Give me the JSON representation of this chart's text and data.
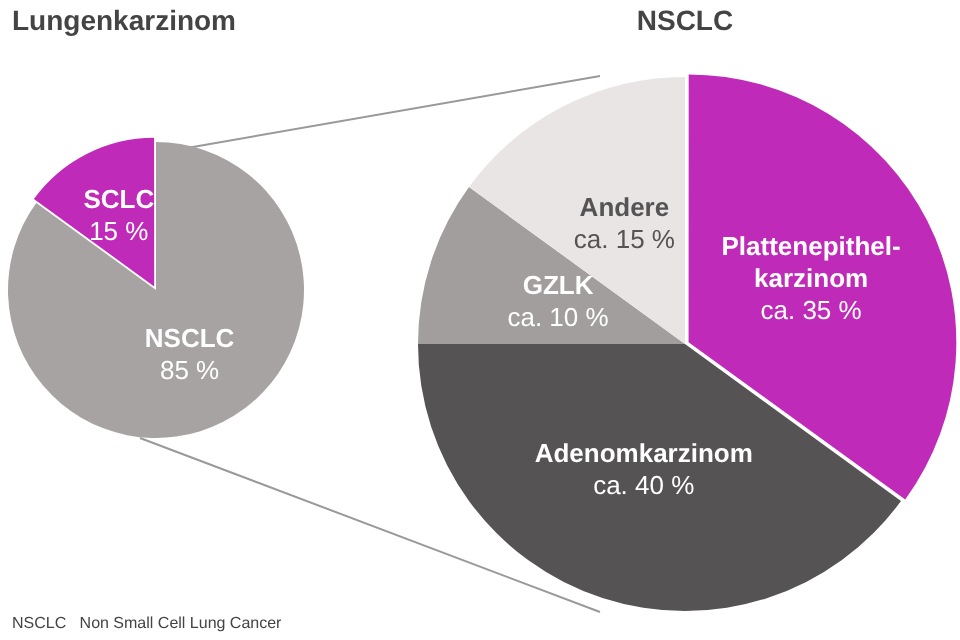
{
  "chart_data": [
    {
      "type": "pie",
      "title": "Lungenkarzinom",
      "categories": [
        "SCLC",
        "NSCLC"
      ],
      "values": [
        15,
        85
      ],
      "colors": [
        "#c02ab8",
        "#a8a3a3"
      ],
      "value_labels": [
        "15 %",
        "85 %"
      ],
      "legend": false,
      "annotations": [
        "NSCLC   Non Small Cell Lung Cancer"
      ]
    },
    {
      "type": "pie",
      "title": "NSCLC",
      "categories": [
        "Plattenepithel-karzinom",
        "Adenomkarzinom",
        "GZLK",
        "Andere"
      ],
      "values": [
        35,
        40,
        10,
        15
      ],
      "colors": [
        "#c02ab8",
        "#555353",
        "#a39e9e",
        "#e9e5e4"
      ],
      "value_labels": [
        "ca. 35 %",
        "ca. 40 %",
        "ca. 10 %",
        "ca. 15 %"
      ],
      "legend": false
    }
  ]
}
